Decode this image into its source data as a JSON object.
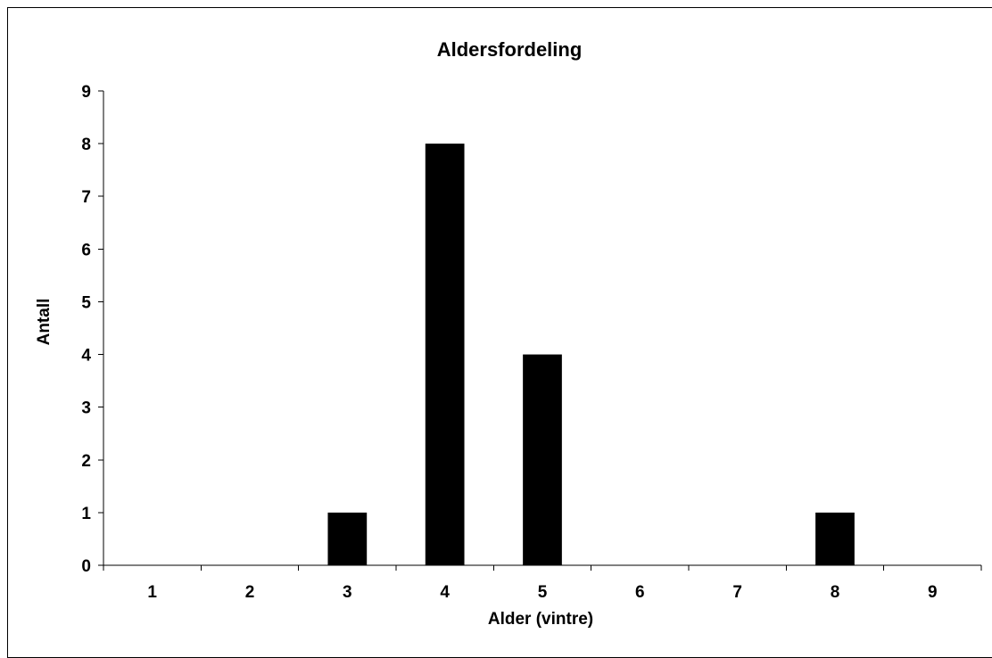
{
  "chart_data": {
    "type": "bar",
    "title": "Aldersfordeling",
    "xlabel": "Alder (vintre)",
    "ylabel": "Antall",
    "categories": [
      "1",
      "2",
      "3",
      "4",
      "5",
      "6",
      "7",
      "8",
      "9"
    ],
    "values": [
      0,
      0,
      1,
      8,
      4,
      0,
      0,
      1,
      0
    ],
    "ylim": [
      0,
      9
    ],
    "yticks": [
      "0",
      "1",
      "2",
      "3",
      "4",
      "5",
      "6",
      "7",
      "8",
      "9"
    ],
    "grid": false,
    "legend": "none",
    "bar_color": "#000000",
    "axis_color": "#000000"
  }
}
